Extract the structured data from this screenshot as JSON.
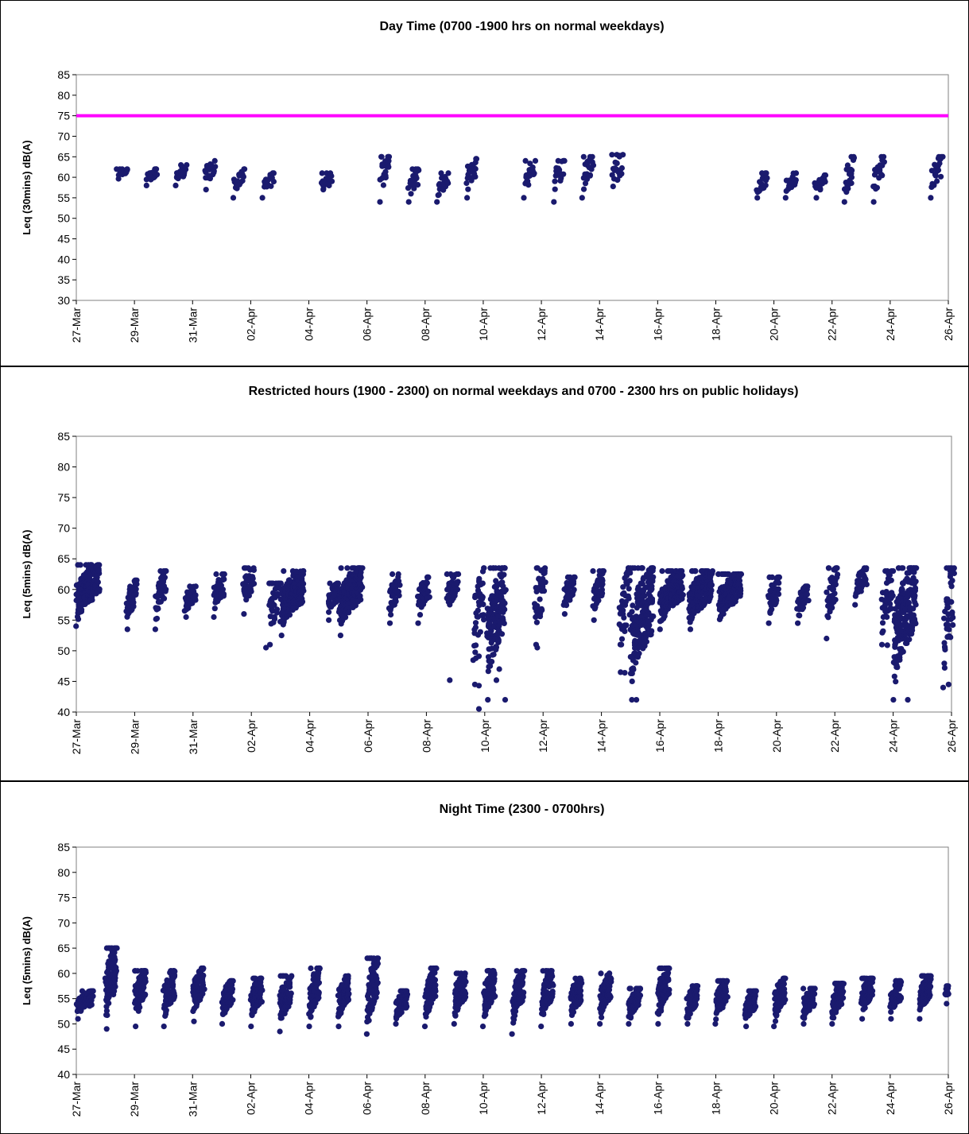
{
  "chart_data": [
    {
      "type": "scatter",
      "title": "Day Time (0700 -1900 hrs on normal weekdays)",
      "xlabel": "",
      "ylabel": "Leq (30mins) dB(A)",
      "ylim": [
        30,
        85
      ],
      "y_ticks": [
        "30",
        "35",
        "40",
        "45",
        "50",
        "55",
        "60",
        "65",
        "70",
        "75",
        "80",
        "85"
      ],
      "x_ticks": [
        "27-Mar",
        "29-Mar",
        "31-Mar",
        "02-Apr",
        "04-Apr",
        "06-Apr",
        "08-Apr",
        "10-Apr",
        "12-Apr",
        "14-Apr",
        "16-Apr",
        "18-Apr",
        "20-Apr",
        "22-Apr",
        "24-Apr",
        "26-Apr"
      ],
      "limit_line": {
        "value": 75,
        "color": "#ff00ff"
      },
      "marker_color": "#1a1a6e",
      "clusters": [
        {
          "day": 28.6,
          "min": 59,
          "max": 62,
          "n": 22
        },
        {
          "day": 29.6,
          "min": 58,
          "max": 62,
          "n": 22
        },
        {
          "day": 30.6,
          "min": 58,
          "max": 63,
          "n": 22
        },
        {
          "day": 31.6,
          "min": 57,
          "max": 64,
          "n": 22
        },
        {
          "day": 32.6,
          "min": 55,
          "max": 62,
          "n": 22
        },
        {
          "day": 33.6,
          "min": 55,
          "max": 61,
          "n": 20
        },
        {
          "day": 35.6,
          "min": 55,
          "max": 61,
          "n": 20
        },
        {
          "day": 37.6,
          "min": 54,
          "max": 65,
          "n": 22
        },
        {
          "day": 38.6,
          "min": 54,
          "max": 62,
          "n": 22
        },
        {
          "day": 39.6,
          "min": 54,
          "max": 61,
          "n": 22
        },
        {
          "day": 40.6,
          "min": 55,
          "max": 64.5,
          "n": 22
        },
        {
          "day": 42.6,
          "min": 55,
          "max": 64,
          "n": 22
        },
        {
          "day": 43.6,
          "min": 54,
          "max": 64,
          "n": 22
        },
        {
          "day": 44.6,
          "min": 55,
          "max": 65,
          "n": 22
        },
        {
          "day": 45.6,
          "min": 55,
          "max": 65.5,
          "n": 22
        },
        {
          "day": 50.6,
          "min": 55,
          "max": 61,
          "n": 22
        },
        {
          "day": 51.6,
          "min": 55,
          "max": 61,
          "n": 22
        },
        {
          "day": 52.6,
          "min": 55,
          "max": 60.5,
          "n": 22
        },
        {
          "day": 53.6,
          "min": 54,
          "max": 65,
          "n": 22
        },
        {
          "day": 54.6,
          "min": 54,
          "max": 65,
          "n": 22
        },
        {
          "day": 56.6,
          "min": 55,
          "max": 65,
          "n": 22
        }
      ]
    },
    {
      "type": "scatter",
      "title": "Restricted hours (1900 - 2300) on normal weekdays and 0700 - 2300 hrs on public holidays)",
      "xlabel": "",
      "ylabel": "Leq (5mins) dB(A)",
      "ylim": [
        40,
        85
      ],
      "y_ticks": [
        "40",
        "45",
        "50",
        "55",
        "60",
        "65",
        "70",
        "75",
        "80",
        "85"
      ],
      "x_ticks": [
        "27-Mar",
        "29-Mar",
        "31-Mar",
        "02-Apr",
        "04-Apr",
        "06-Apr",
        "08-Apr",
        "10-Apr",
        "12-Apr",
        "14-Apr",
        "16-Apr",
        "18-Apr",
        "20-Apr",
        "22-Apr",
        "24-Apr",
        "26-Apr"
      ],
      "marker_color": "#1a1a6e",
      "clusters": [
        {
          "day": 27.4,
          "min": 54,
          "max": 64,
          "n": 200,
          "w": 0.75
        },
        {
          "day": 28.9,
          "min": 53.5,
          "max": 61.5,
          "n": 45
        },
        {
          "day": 29.9,
          "min": 53.5,
          "max": 63,
          "n": 45
        },
        {
          "day": 30.9,
          "min": 55.5,
          "max": 60.5,
          "n": 45
        },
        {
          "day": 31.9,
          "min": 55.5,
          "max": 62.5,
          "n": 45
        },
        {
          "day": 32.9,
          "min": 56,
          "max": 63.5,
          "n": 45
        },
        {
          "day": 33.8,
          "min": 51,
          "max": 61,
          "n": 40
        },
        {
          "day": 34.4,
          "min": 52.5,
          "max": 63,
          "n": 200,
          "w": 0.75
        },
        {
          "day": 35.8,
          "min": 55,
          "max": 61,
          "n": 45
        },
        {
          "day": 36.4,
          "min": 52.5,
          "max": 63.5,
          "n": 200,
          "w": 0.75
        },
        {
          "day": 37.9,
          "min": 54.5,
          "max": 62.5,
          "n": 45
        },
        {
          "day": 38.9,
          "min": 54.5,
          "max": 62,
          "n": 45
        },
        {
          "day": 39.9,
          "min": 55.5,
          "max": 62.5,
          "n": 45
        },
        {
          "day": 40.8,
          "min": 44.5,
          "max": 63.5,
          "n": 45
        },
        {
          "day": 41.4,
          "min": 42,
          "max": 63.5,
          "n": 160,
          "w": 0.6
        },
        {
          "day": 42.9,
          "min": 51,
          "max": 63.5,
          "n": 45
        },
        {
          "day": 43.9,
          "min": 56,
          "max": 62,
          "n": 45
        },
        {
          "day": 44.9,
          "min": 55,
          "max": 63,
          "n": 45
        },
        {
          "day": 45.8,
          "min": 46.5,
          "max": 63.5,
          "n": 45
        },
        {
          "day": 46.4,
          "min": 42,
          "max": 63.5,
          "n": 200,
          "w": 0.75
        },
        {
          "day": 47.4,
          "min": 53.5,
          "max": 63,
          "n": 200,
          "w": 0.75
        },
        {
          "day": 48.4,
          "min": 53.5,
          "max": 63,
          "n": 200,
          "w": 0.75
        },
        {
          "day": 49.4,
          "min": 54,
          "max": 62.5,
          "n": 200,
          "w": 0.75
        },
        {
          "day": 50.9,
          "min": 54.5,
          "max": 62,
          "n": 45
        },
        {
          "day": 51.9,
          "min": 54.5,
          "max": 60.5,
          "n": 45
        },
        {
          "day": 52.9,
          "min": 52,
          "max": 63.5,
          "n": 45
        },
        {
          "day": 53.9,
          "min": 57.5,
          "max": 63.5,
          "n": 45
        },
        {
          "day": 54.8,
          "min": 51,
          "max": 63,
          "n": 45
        },
        {
          "day": 55.4,
          "min": 42,
          "max": 63.5,
          "n": 200,
          "w": 0.75
        },
        {
          "day": 56.9,
          "min": 44,
          "max": 63.5,
          "n": 45
        }
      ],
      "outliers": [
        {
          "day": 33.5,
          "y": 50.5
        },
        {
          "day": 39.8,
          "y": 45.2
        },
        {
          "day": 40.8,
          "y": 40.5
        },
        {
          "day": 40.8,
          "y": 44.3
        },
        {
          "day": 40.8,
          "y": 49.1
        },
        {
          "day": 41.4,
          "y": 45.2
        },
        {
          "day": 41.5,
          "y": 47.0
        },
        {
          "day": 41.7,
          "y": 42.0
        },
        {
          "day": 42.8,
          "y": 50.5
        },
        {
          "day": 45.8,
          "y": 46.4
        },
        {
          "day": 46.2,
          "y": 42.0
        },
        {
          "day": 46.0,
          "y": 49.0
        },
        {
          "day": 54.8,
          "y": 50.9
        },
        {
          "day": 55.5,
          "y": 42.0
        },
        {
          "day": 56.9,
          "y": 44.5
        }
      ]
    },
    {
      "type": "scatter",
      "title": "Night Time (2300 - 0700hrs)",
      "xlabel": "",
      "ylabel": "Leq (5mins) dB(A)",
      "ylim": [
        40,
        85
      ],
      "y_ticks": [
        "40",
        "45",
        "50",
        "55",
        "60",
        "65",
        "70",
        "75",
        "80",
        "85"
      ],
      "x_ticks": [
        "27-Mar",
        "29-Mar",
        "31-Mar",
        "02-Apr",
        "04-Apr",
        "06-Apr",
        "08-Apr",
        "10-Apr",
        "12-Apr",
        "14-Apr",
        "16-Apr",
        "18-Apr",
        "20-Apr",
        "22-Apr",
        "24-Apr",
        "26-Apr"
      ],
      "marker_color": "#1a1a6e",
      "clusters": [
        {
          "day": 27.3,
          "min": 51,
          "max": 56.5,
          "n": 90,
          "w": 0.55
        },
        {
          "day": 28.2,
          "min": 49,
          "max": 65,
          "n": 96
        },
        {
          "day": 29.2,
          "min": 49.5,
          "max": 60.5,
          "n": 96
        },
        {
          "day": 30.2,
          "min": 49.5,
          "max": 60.5,
          "n": 96
        },
        {
          "day": 31.2,
          "min": 50.5,
          "max": 61,
          "n": 96
        },
        {
          "day": 32.2,
          "min": 50,
          "max": 58.5,
          "n": 96
        },
        {
          "day": 33.2,
          "min": 49.5,
          "max": 59,
          "n": 96
        },
        {
          "day": 34.2,
          "min": 48.5,
          "max": 59.5,
          "n": 96
        },
        {
          "day": 35.2,
          "min": 49.5,
          "max": 61,
          "n": 96
        },
        {
          "day": 36.2,
          "min": 49.5,
          "max": 59.5,
          "n": 96
        },
        {
          "day": 37.2,
          "min": 48,
          "max": 63,
          "n": 96
        },
        {
          "day": 38.2,
          "min": 50,
          "max": 56.5,
          "n": 96
        },
        {
          "day": 39.2,
          "min": 49.5,
          "max": 61,
          "n": 96
        },
        {
          "day": 40.2,
          "min": 50,
          "max": 60,
          "n": 96
        },
        {
          "day": 41.2,
          "min": 49.5,
          "max": 60.5,
          "n": 96
        },
        {
          "day": 42.2,
          "min": 48,
          "max": 60.5,
          "n": 96
        },
        {
          "day": 43.2,
          "min": 49.5,
          "max": 60.5,
          "n": 96
        },
        {
          "day": 44.2,
          "min": 50,
          "max": 59,
          "n": 96
        },
        {
          "day": 45.2,
          "min": 50,
          "max": 60,
          "n": 96
        },
        {
          "day": 46.2,
          "min": 50,
          "max": 57,
          "n": 96
        },
        {
          "day": 47.2,
          "min": 50,
          "max": 61,
          "n": 96
        },
        {
          "day": 48.2,
          "min": 50,
          "max": 57.5,
          "n": 96
        },
        {
          "day": 49.2,
          "min": 50,
          "max": 58.5,
          "n": 96
        },
        {
          "day": 50.2,
          "min": 49.5,
          "max": 56.5,
          "n": 96
        },
        {
          "day": 51.2,
          "min": 49.5,
          "max": 59,
          "n": 96
        },
        {
          "day": 52.2,
          "min": 50,
          "max": 57,
          "n": 96
        },
        {
          "day": 53.2,
          "min": 50,
          "max": 58,
          "n": 96
        },
        {
          "day": 54.2,
          "min": 51,
          "max": 59,
          "n": 96
        },
        {
          "day": 55.2,
          "min": 51,
          "max": 58.5,
          "n": 96
        },
        {
          "day": 56.2,
          "min": 51,
          "max": 59.5,
          "n": 96
        },
        {
          "day": 56.95,
          "min": 54,
          "max": 57.5,
          "n": 20,
          "w": 0.1
        }
      ]
    }
  ]
}
